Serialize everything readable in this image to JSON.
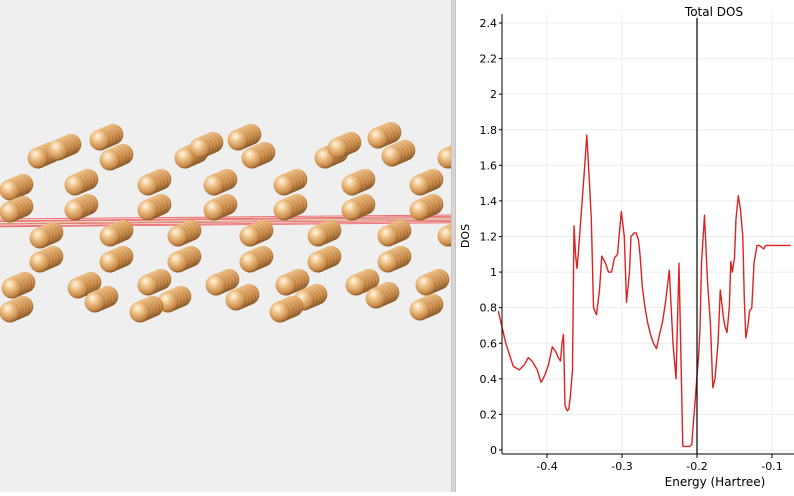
{
  "structure_viewer": {
    "atom_color": "#e8b070",
    "bond_color": "#ee5555"
  },
  "chart_data": {
    "type": "line",
    "title": "Total DOS",
    "xlabel": "Energy (Hartree)",
    "ylabel": "DOS",
    "xlim": [
      -0.465,
      -0.075
    ],
    "ylim": [
      0,
      2.45
    ],
    "xticks": [
      -0.4,
      -0.3,
      -0.2,
      -0.1
    ],
    "xtick_labels": [
      "-0.4",
      "-0.3",
      "-0.2",
      "-0.1"
    ],
    "yticks": [
      0,
      0.2,
      0.4,
      0.6,
      0.8,
      1,
      1.2,
      1.4,
      1.6,
      1.8,
      2,
      2.2,
      2.4
    ],
    "ytick_labels": [
      "0",
      "0.2",
      "0.4",
      "0.6",
      "0.8",
      "1",
      "1.2",
      "1.4",
      "1.6",
      "1.8",
      "2",
      "2.2",
      "2.4"
    ],
    "grid": true,
    "fermi_level": -0.2,
    "series_color": "#dd2222",
    "series": [
      {
        "x": [
          -0.465,
          -0.455,
          -0.445,
          -0.437,
          -0.43,
          -0.425,
          -0.42,
          -0.413,
          -0.408,
          -0.403,
          -0.398,
          -0.393,
          -0.388,
          -0.385,
          -0.382,
          -0.38,
          -0.378,
          -0.376,
          -0.373,
          -0.371,
          -0.369,
          -0.366,
          -0.364,
          -0.362,
          -0.36,
          -0.358,
          -0.354,
          -0.35,
          -0.347,
          -0.344,
          -0.341,
          -0.338,
          -0.334,
          -0.33,
          -0.327,
          -0.322,
          -0.318,
          -0.314,
          -0.31,
          -0.306,
          -0.301,
          -0.297,
          -0.294,
          -0.29,
          -0.288,
          -0.284,
          -0.281,
          -0.278,
          -0.276,
          -0.273,
          -0.27,
          -0.266,
          -0.262,
          -0.258,
          -0.254,
          -0.25,
          -0.246,
          -0.242,
          -0.237,
          -0.232,
          -0.228,
          -0.224,
          -0.219,
          -0.216,
          -0.213,
          -0.21,
          -0.207,
          -0.205,
          -0.203,
          -0.2,
          -0.198,
          -0.196,
          -0.194,
          -0.19,
          -0.186,
          -0.182,
          -0.179,
          -0.176,
          -0.172,
          -0.169,
          -0.165,
          -0.163,
          -0.16,
          -0.157,
          -0.155,
          -0.153,
          -0.15,
          -0.148,
          -0.145,
          -0.142,
          -0.139,
          -0.137,
          -0.135,
          -0.132,
          -0.13,
          -0.127,
          -0.124,
          -0.12,
          -0.117,
          -0.114,
          -0.111,
          -0.11,
          -0.108,
          -0.106,
          -0.104,
          -0.102,
          -0.1,
          -0.098,
          -0.095,
          -0.093,
          -0.09,
          -0.087,
          -0.084,
          -0.081,
          -0.079,
          -0.077,
          -0.075
        ],
        "values": [
          0.78,
          0.6,
          0.47,
          0.45,
          0.48,
          0.52,
          0.5,
          0.45,
          0.38,
          0.42,
          0.48,
          0.58,
          0.55,
          0.52,
          0.5,
          0.6,
          0.65,
          0.25,
          0.22,
          0.23,
          0.3,
          0.45,
          1.26,
          1.1,
          1.02,
          1.12,
          1.35,
          1.58,
          1.77,
          1.55,
          1.3,
          0.8,
          0.76,
          0.9,
          1.09,
          1.05,
          1.0,
          1.0,
          1.08,
          1.1,
          1.34,
          1.2,
          0.83,
          1.0,
          1.2,
          1.22,
          1.22,
          1.18,
          1.1,
          0.92,
          0.82,
          0.72,
          0.65,
          0.6,
          0.57,
          0.65,
          0.72,
          0.83,
          1.01,
          0.6,
          0.4,
          1.05,
          0.02,
          0.02,
          0.02,
          0.02,
          0.03,
          0.15,
          0.25,
          0.42,
          0.52,
          0.68,
          1.05,
          1.32,
          0.95,
          0.7,
          0.35,
          0.4,
          0.6,
          0.9,
          0.75,
          0.7,
          0.66,
          0.8,
          1.06,
          1.0,
          1.08,
          1.3,
          1.43,
          1.35,
          1.2,
          0.85,
          0.63,
          0.7,
          0.78,
          0.8,
          1.05,
          1.15,
          1.15,
          1.14,
          1.13,
          1.14,
          1.15,
          1.15,
          1.15,
          1.15,
          1.15,
          1.15,
          1.15,
          1.15,
          1.15,
          1.15,
          1.15,
          1.15,
          1.15,
          1.15,
          1.15
        ]
      }
    ]
  }
}
